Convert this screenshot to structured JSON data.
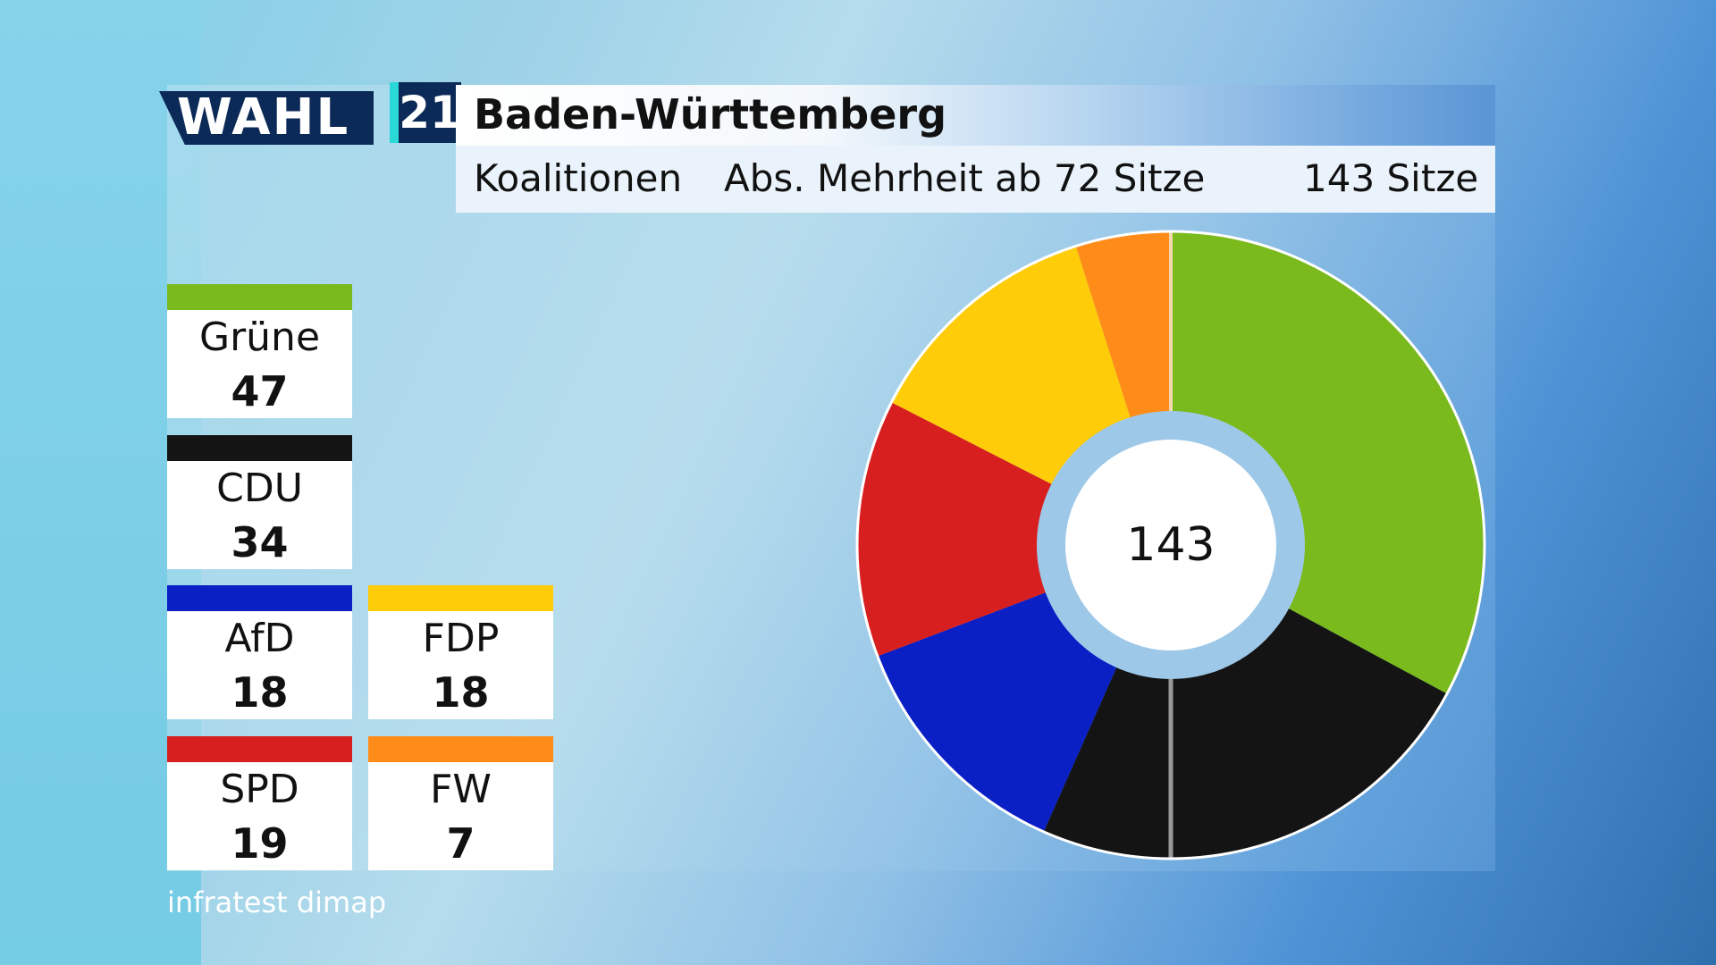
{
  "logo": {
    "wahl": "WAHL",
    "year": "21"
  },
  "header": {
    "title": "Baden-Württemberg",
    "subtitle_left": "Koalitionen",
    "subtitle_mid": "Abs. Mehrheit ab 72 Sitze",
    "subtitle_right": "143 Sitze"
  },
  "source": "infratest dimap",
  "chart_data": {
    "type": "pie",
    "center_label": "143",
    "total": 143,
    "slices": [
      {
        "name": "Grüne",
        "value": 47,
        "color": "#7aba1c"
      },
      {
        "name": "CDU",
        "value": 34,
        "color": "#141414"
      },
      {
        "name": "AfD",
        "value": 18,
        "color": "#0a1fc4"
      },
      {
        "name": "SPD",
        "value": 19,
        "color": "#d81f1f"
      },
      {
        "name": "FDP",
        "value": 18,
        "color": "#ffcc0a"
      },
      {
        "name": "FW",
        "value": 7,
        "color": "#ff8c18"
      }
    ],
    "majority_marker": 72
  },
  "legend": [
    {
      "name": "Grüne",
      "value": "47",
      "color": "#7aba1c"
    },
    {
      "name": "CDU",
      "value": "34",
      "color": "#141414"
    },
    {
      "name": "AfD",
      "value": "18",
      "color": "#0a1fc4"
    },
    {
      "name": "FDP",
      "value": "18",
      "color": "#ffcc0a"
    },
    {
      "name": "SPD",
      "value": "19",
      "color": "#d81f1f"
    },
    {
      "name": "FW",
      "value": "7",
      "color": "#ff8c18"
    }
  ]
}
